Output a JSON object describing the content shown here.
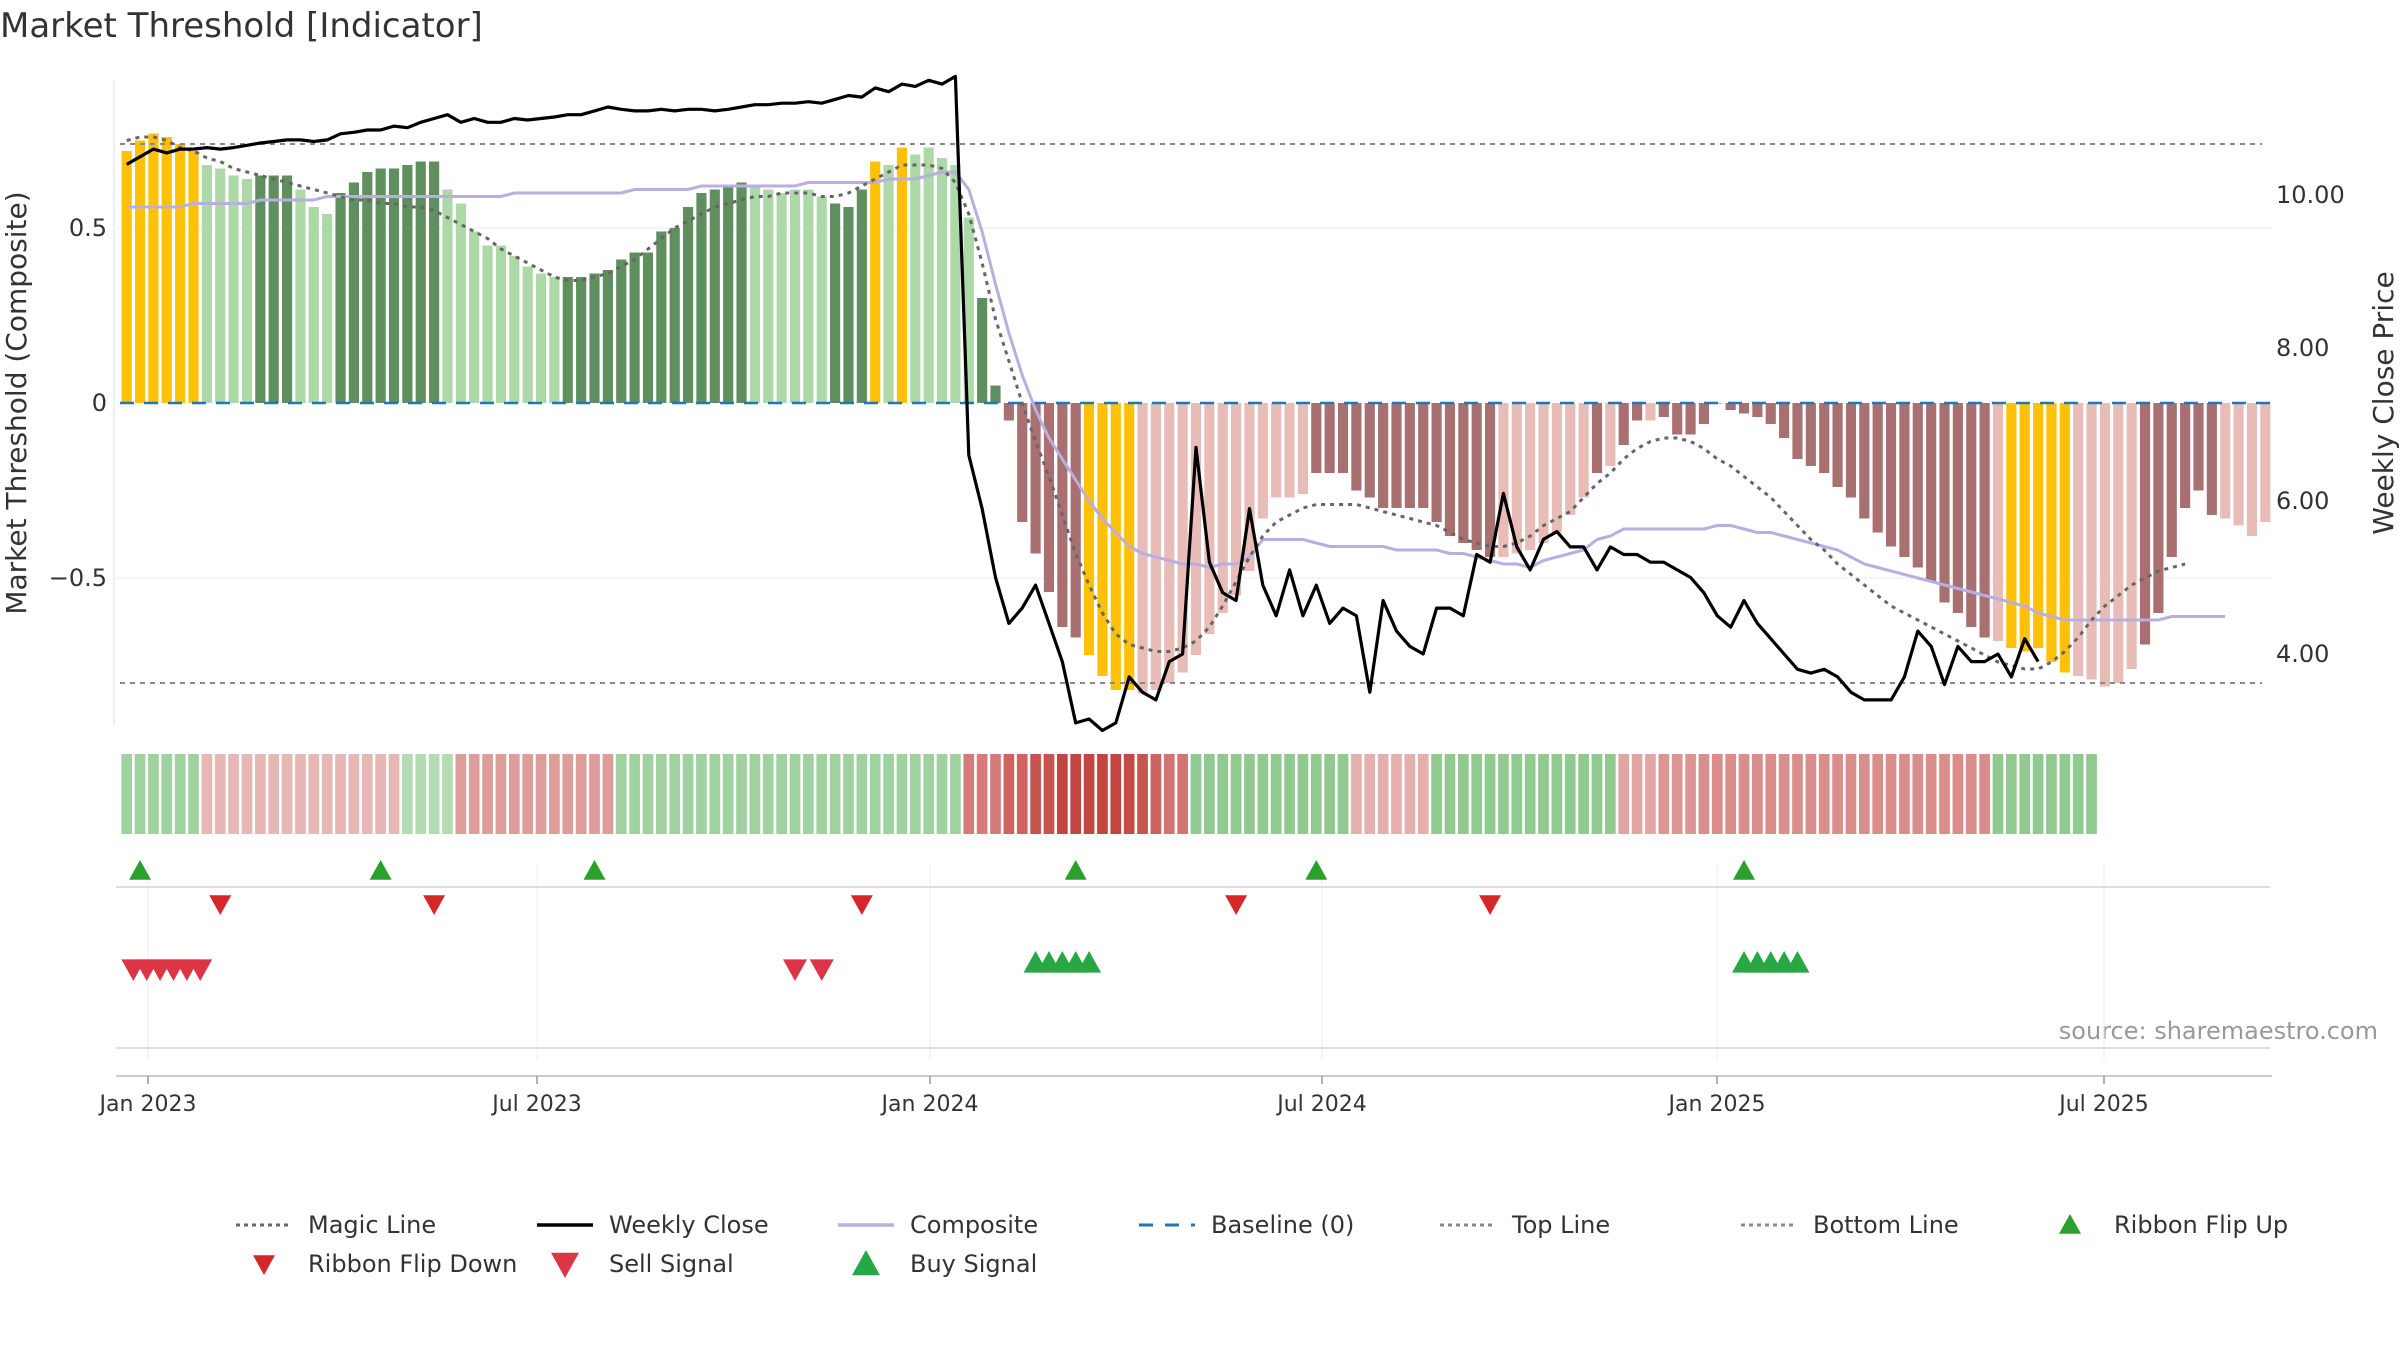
{
  "chart_data": {
    "type": "bar",
    "title": "Market Threshold [Indicator]",
    "ylabel": "Market Threshold (Composite)",
    "y2label": "Weekly Close Price",
    "source": "source: sharemaestro.com",
    "ylim": [
      -0.92,
      0.92
    ],
    "y2lim": [
      1.3,
      12.8
    ],
    "yticks": [
      {
        "v": 0.5,
        "label": "0.5"
      },
      {
        "v": 0,
        "label": "0"
      },
      {
        "v": -0.5,
        "label": "−0.5"
      }
    ],
    "y2ticks": [
      {
        "v": 10,
        "label": "10.00"
      },
      {
        "v": 8,
        "label": "8.00"
      },
      {
        "v": 6,
        "label": "6.00"
      },
      {
        "v": 4,
        "label": "4.00"
      }
    ],
    "xticks": [
      "Jan 2023",
      "Jul 2023",
      "Jan 2024",
      "Jul 2024",
      "Jan 2025",
      "Jul 2025"
    ],
    "top_line": 0.74,
    "bottom_line": -0.8,
    "grid": true,
    "legend_position": "bottom",
    "legend": [
      {
        "label": "Magic Line",
        "kind": "dotted",
        "color": "#666666"
      },
      {
        "label": "Weekly Close",
        "kind": "solid",
        "color": "#000000"
      },
      {
        "label": "Composite",
        "kind": "solid",
        "color": "#b9aee0"
      },
      {
        "label": "Baseline (0)",
        "kind": "dashed",
        "color": "#1f77b4"
      },
      {
        "label": "Top Line",
        "kind": "dotted",
        "color": "#888888"
      },
      {
        "label": "Bottom Line",
        "kind": "dotted",
        "color": "#888888"
      },
      {
        "label": "Ribbon Flip Up",
        "kind": "tri-up",
        "color": "#2ca02c"
      },
      {
        "label": "Ribbon Flip Down",
        "kind": "tri-down",
        "color": "#d62728"
      },
      {
        "label": "Sell Signal",
        "kind": "tri-down-big",
        "color": "#dc3545"
      },
      {
        "label": "Buy Signal",
        "kind": "tri-up-big",
        "color": "#28a745"
      }
    ],
    "colors": {
      "highlight": "#FFC107",
      "bull_strong": "#5f8f5f",
      "bull_weak": "#add8a8",
      "bear_strong": "#a87070",
      "bear_weak": "#e8bdb8",
      "magic": "#666666",
      "close": "#000000",
      "composite": "#b9aee0",
      "baseline": "#1f77b4",
      "flip_up": "#2ca02c",
      "flip_down": "#d62728",
      "sell": "#dc3545",
      "buy": "#28a745"
    },
    "composite_bars": [
      0.72,
      0.75,
      0.77,
      0.76,
      0.74,
      0.72,
      0.68,
      0.67,
      0.65,
      0.64,
      0.65,
      0.65,
      0.65,
      0.61,
      0.56,
      0.54,
      0.6,
      0.63,
      0.66,
      0.67,
      0.67,
      0.68,
      0.69,
      0.69,
      0.61,
      0.57,
      0.49,
      0.45,
      0.45,
      0.42,
      0.39,
      0.37,
      0.36,
      0.36,
      0.36,
      0.37,
      0.38,
      0.41,
      0.43,
      0.43,
      0.49,
      0.5,
      0.56,
      0.6,
      0.61,
      0.62,
      0.63,
      0.62,
      0.61,
      0.6,
      0.61,
      0.61,
      0.59,
      0.57,
      0.56,
      0.61,
      0.69,
      0.68,
      0.73,
      0.71,
      0.73,
      0.7,
      0.68,
      0.53,
      0.3,
      0.05,
      -0.05,
      -0.34,
      -0.43,
      -0.54,
      -0.64,
      -0.67,
      -0.72,
      -0.78,
      -0.82,
      -0.82,
      -0.83,
      -0.82,
      -0.8,
      -0.77,
      -0.72,
      -0.66,
      -0.6,
      -0.55,
      -0.48,
      -0.33,
      -0.27,
      -0.27,
      -0.26,
      -0.2,
      -0.2,
      -0.2,
      -0.25,
      -0.27,
      -0.3,
      -0.3,
      -0.3,
      -0.3,
      -0.34,
      -0.38,
      -0.4,
      -0.42,
      -0.44,
      -0.44,
      -0.43,
      -0.42,
      -0.4,
      -0.37,
      -0.32,
      -0.27,
      -0.2,
      -0.18,
      -0.12,
      -0.05,
      -0.05,
      -0.04,
      -0.09,
      -0.09,
      -0.06,
      0.0,
      -0.02,
      -0.03,
      -0.04,
      -0.06,
      -0.1,
      -0.16,
      -0.18,
      -0.2,
      -0.24,
      -0.27,
      -0.33,
      -0.37,
      -0.41,
      -0.44,
      -0.47,
      -0.51,
      -0.57,
      -0.6,
      -0.64,
      -0.67,
      -0.68,
      -0.7,
      -0.71,
      -0.7,
      -0.74,
      -0.77,
      -0.78,
      -0.79,
      -0.81,
      -0.8,
      -0.76,
      -0.69,
      -0.6,
      -0.44,
      -0.3,
      -0.25,
      -0.32,
      -0.33,
      -0.35,
      -0.38,
      -0.34
    ],
    "bar_states": "HHHHHHWWWWSSSWWWSSSSSSSSWWWWWWWWWSSSSSSSSSSSSSSWWWWWWSSSHWHWWWWWSSSSSSSSHHHHWWWWWWWWWWWWWSSSSSSSSSSSSSSWWWWWWWSWSSWSSSSSSSSSSSSSSSSSSSSSSSSSWHHHHHWWWWWSSSSSS",
    "composite_line": [
      0.56,
      0.56,
      0.56,
      0.56,
      0.56,
      0.57,
      0.57,
      0.57,
      0.57,
      0.57,
      0.58,
      0.58,
      0.58,
      0.58,
      0.58,
      0.59,
      0.59,
      0.59,
      0.59,
      0.59,
      0.59,
      0.59,
      0.59,
      0.59,
      0.59,
      0.59,
      0.59,
      0.59,
      0.59,
      0.6,
      0.6,
      0.6,
      0.6,
      0.6,
      0.6,
      0.6,
      0.6,
      0.6,
      0.61,
      0.61,
      0.61,
      0.61,
      0.61,
      0.62,
      0.62,
      0.62,
      0.62,
      0.62,
      0.62,
      0.62,
      0.62,
      0.63,
      0.63,
      0.63,
      0.63,
      0.63,
      0.63,
      0.64,
      0.64,
      0.64,
      0.65,
      0.66,
      0.66,
      0.61,
      0.49,
      0.34,
      0.2,
      0.08,
      -0.02,
      -0.1,
      -0.16,
      -0.22,
      -0.28,
      -0.33,
      -0.37,
      -0.41,
      -0.43,
      -0.44,
      -0.45,
      -0.46,
      -0.46,
      -0.47,
      -0.46,
      -0.46,
      -0.44,
      -0.39,
      -0.39,
      -0.39,
      -0.39,
      -0.4,
      -0.41,
      -0.41,
      -0.41,
      -0.41,
      -0.41,
      -0.42,
      -0.42,
      -0.42,
      -0.42,
      -0.43,
      -0.43,
      -0.44,
      -0.45,
      -0.46,
      -0.46,
      -0.47,
      -0.45,
      -0.44,
      -0.43,
      -0.42,
      -0.39,
      -0.38,
      -0.36,
      -0.36,
      -0.36,
      -0.36,
      -0.36,
      -0.36,
      -0.36,
      -0.35,
      -0.35,
      -0.36,
      -0.37,
      -0.37,
      -0.38,
      -0.39,
      -0.4,
      -0.41,
      -0.42,
      -0.44,
      -0.46,
      -0.47,
      -0.48,
      -0.49,
      -0.5,
      -0.51,
      -0.52,
      -0.53,
      -0.54,
      -0.55,
      -0.56,
      -0.57,
      -0.58,
      -0.6,
      -0.61,
      -0.62,
      -0.62,
      -0.62,
      -0.62,
      -0.62,
      -0.62,
      -0.62,
      -0.62,
      -0.61,
      -0.61,
      -0.61,
      -0.61,
      -0.61
    ],
    "magic_line": [
      0.75,
      0.76,
      0.76,
      0.75,
      0.73,
      0.72,
      0.7,
      0.69,
      0.67,
      0.66,
      0.65,
      0.64,
      0.63,
      0.62,
      0.61,
      0.6,
      0.59,
      0.58,
      0.58,
      0.57,
      0.57,
      0.56,
      0.56,
      0.55,
      0.53,
      0.51,
      0.49,
      0.47,
      0.44,
      0.42,
      0.4,
      0.38,
      0.36,
      0.35,
      0.35,
      0.36,
      0.37,
      0.39,
      0.41,
      0.44,
      0.47,
      0.5,
      0.52,
      0.54,
      0.56,
      0.57,
      0.58,
      0.59,
      0.59,
      0.6,
      0.6,
      0.6,
      0.59,
      0.59,
      0.6,
      0.62,
      0.64,
      0.66,
      0.68,
      0.68,
      0.68,
      0.67,
      0.63,
      0.54,
      0.4,
      0.24,
      0.12,
      0.0,
      -0.11,
      -0.21,
      -0.32,
      -0.43,
      -0.52,
      -0.6,
      -0.66,
      -0.69,
      -0.7,
      -0.71,
      -0.71,
      -0.7,
      -0.68,
      -0.64,
      -0.58,
      -0.51,
      -0.44,
      -0.38,
      -0.34,
      -0.32,
      -0.3,
      -0.29,
      -0.29,
      -0.29,
      -0.29,
      -0.3,
      -0.31,
      -0.32,
      -0.33,
      -0.34,
      -0.35,
      -0.37,
      -0.39,
      -0.4,
      -0.41,
      -0.41,
      -0.4,
      -0.38,
      -0.35,
      -0.33,
      -0.31,
      -0.27,
      -0.23,
      -0.2,
      -0.16,
      -0.13,
      -0.11,
      -0.1,
      -0.1,
      -0.11,
      -0.13,
      -0.16,
      -0.18,
      -0.21,
      -0.24,
      -0.27,
      -0.31,
      -0.35,
      -0.39,
      -0.42,
      -0.46,
      -0.49,
      -0.52,
      -0.55,
      -0.58,
      -0.6,
      -0.62,
      -0.64,
      -0.66,
      -0.68,
      -0.7,
      -0.72,
      -0.74,
      -0.75,
      -0.76,
      -0.76,
      -0.74,
      -0.71,
      -0.67,
      -0.62,
      -0.58,
      -0.55,
      -0.52,
      -0.5,
      -0.48,
      -0.47,
      -0.46
    ],
    "weekly_close": [
      10.4,
      10.5,
      10.6,
      10.55,
      10.6,
      10.6,
      10.62,
      10.6,
      10.62,
      10.65,
      10.68,
      10.7,
      10.72,
      10.72,
      10.7,
      10.72,
      10.8,
      10.82,
      10.85,
      10.85,
      10.9,
      10.88,
      10.95,
      11.0,
      11.05,
      10.95,
      11.0,
      10.95,
      10.95,
      11.0,
      10.98,
      11.0,
      11.02,
      11.05,
      11.05,
      11.1,
      11.15,
      11.12,
      11.1,
      11.1,
      11.12,
      11.1,
      11.12,
      11.12,
      11.1,
      11.12,
      11.15,
      11.18,
      11.18,
      11.2,
      11.2,
      11.22,
      11.2,
      11.25,
      11.3,
      11.28,
      11.4,
      11.35,
      11.45,
      11.42,
      11.5,
      11.45,
      11.55,
      6.6,
      5.9,
      5.0,
      4.4,
      4.6,
      4.9,
      4.4,
      3.9,
      3.1,
      3.15,
      3.0,
      3.1,
      3.7,
      3.5,
      3.4,
      3.9,
      4.0,
      6.7,
      5.2,
      4.8,
      4.7,
      5.9,
      4.9,
      4.5,
      5.1,
      4.5,
      4.9,
      4.4,
      4.6,
      4.5,
      3.5,
      4.7,
      4.3,
      4.1,
      4.0,
      4.6,
      4.6,
      4.5,
      5.3,
      5.2,
      6.1,
      5.4,
      5.1,
      5.5,
      5.6,
      5.4,
      5.4,
      5.1,
      5.4,
      5.3,
      5.3,
      5.2,
      5.2,
      5.1,
      5.0,
      4.8,
      4.5,
      4.35,
      4.7,
      4.4,
      4.2,
      4.0,
      3.8,
      3.75,
      3.8,
      3.7,
      3.5,
      3.4,
      3.4,
      3.4,
      3.7,
      4.3,
      4.1,
      3.6,
      4.1,
      3.9,
      3.9,
      4.0,
      3.7,
      4.2,
      3.9
    ],
    "ribbon": [
      0.35,
      0.35,
      0.35,
      0.35,
      0.35,
      0.35,
      -0.2,
      -0.2,
      -0.2,
      -0.2,
      -0.2,
      -0.2,
      -0.2,
      -0.2,
      -0.2,
      -0.2,
      -0.2,
      -0.2,
      -0.2,
      -0.2,
      -0.2,
      0.2,
      0.2,
      0.2,
      0.2,
      -0.35,
      -0.35,
      -0.35,
      -0.35,
      -0.35,
      -0.35,
      -0.35,
      -0.35,
      -0.35,
      -0.35,
      -0.35,
      -0.35,
      0.35,
      0.35,
      0.35,
      0.35,
      0.35,
      0.35,
      0.35,
      0.35,
      0.35,
      0.35,
      0.35,
      0.35,
      0.35,
      0.35,
      0.35,
      0.35,
      0.35,
      0.35,
      0.35,
      0.35,
      0.35,
      0.35,
      0.35,
      0.35,
      0.35,
      0.35,
      -0.55,
      -0.55,
      -0.55,
      -0.7,
      -0.7,
      -0.8,
      -0.8,
      -0.9,
      -0.95,
      -0.95,
      -0.95,
      -0.9,
      -0.85,
      -0.8,
      -0.7,
      -0.6,
      -0.6,
      0.45,
      0.45,
      0.45,
      0.45,
      0.45,
      0.45,
      0.45,
      0.45,
      0.45,
      0.45,
      0.45,
      0.45,
      -0.25,
      -0.25,
      -0.25,
      -0.25,
      -0.25,
      -0.25,
      0.45,
      0.45,
      0.45,
      0.45,
      0.45,
      0.45,
      0.45,
      0.45,
      0.45,
      0.45,
      0.45,
      0.45,
      0.45,
      0.45,
      -0.3,
      -0.3,
      -0.3,
      -0.4,
      -0.4,
      -0.4,
      -0.45,
      -0.45,
      -0.45,
      -0.45,
      -0.45,
      -0.45,
      -0.45,
      -0.45,
      -0.45,
      -0.45,
      -0.45,
      -0.45,
      -0.45,
      -0.45,
      -0.45,
      -0.45,
      -0.45,
      -0.45,
      -0.45,
      -0.45,
      -0.45,
      -0.45,
      0.45,
      0.45,
      0.45,
      0.45,
      0.45,
      0.45,
      0.45,
      0.45
    ],
    "ribbon_flip_up": [
      1,
      19,
      35,
      71,
      89,
      121
    ],
    "ribbon_flip_down": [
      7,
      23,
      55,
      83,
      102
    ],
    "sell_signals": [
      0.5,
      1.5,
      2.5,
      3.5,
      4.5,
      5.5,
      50,
      52
    ],
    "buy_signals": [
      68,
      69,
      70,
      71,
      72,
      121,
      122,
      123,
      124,
      125
    ]
  }
}
